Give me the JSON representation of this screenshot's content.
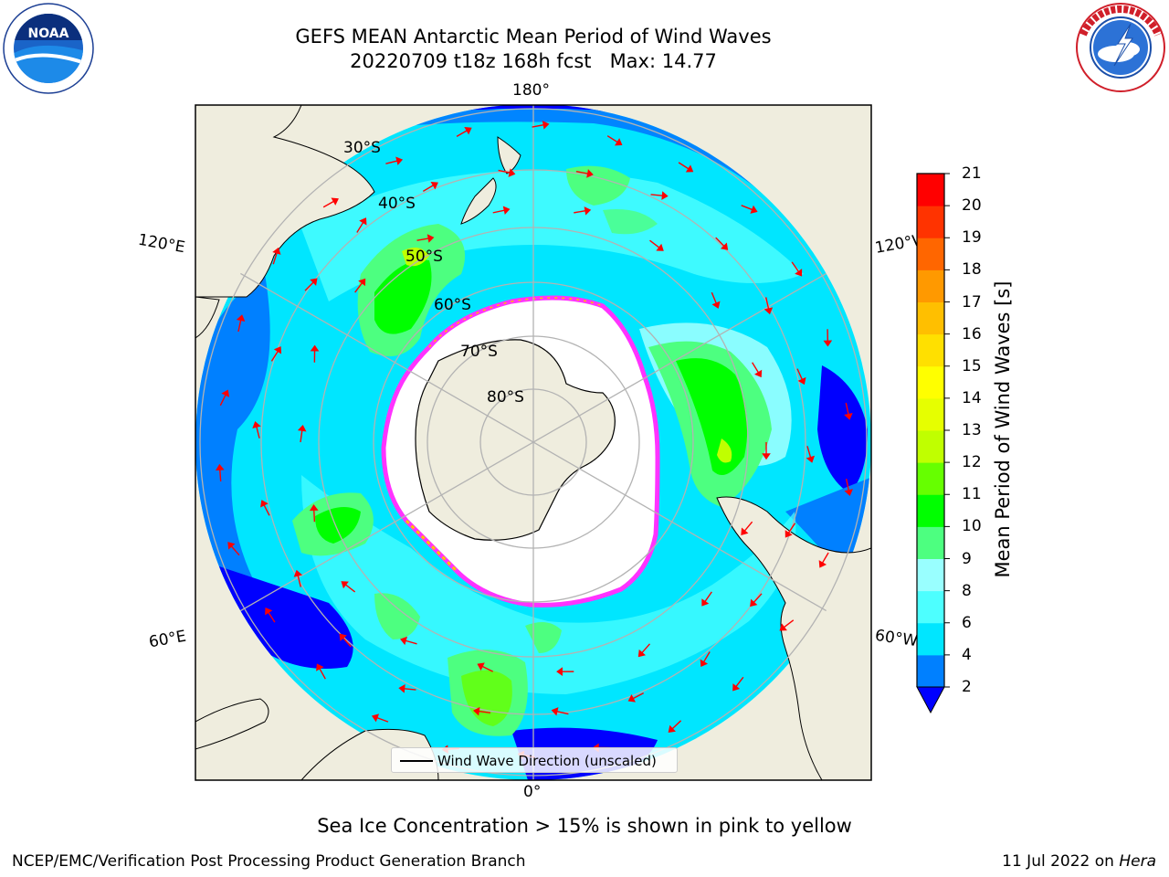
{
  "title": {
    "line1": "GEFS MEAN Antarctic Mean Period of Wind Waves",
    "line2": "20220709 t18z 168h fcst   Max: 14.77"
  },
  "logos": {
    "noaa": {
      "icon": "noaa-logo",
      "text": "NOAA"
    },
    "nws": {
      "icon": "nws-logo"
    }
  },
  "map": {
    "longitude_labels": {
      "top": "180°",
      "bottom": "0°",
      "left_upper": "120°E",
      "left_lower": "60°E",
      "right_upper": "120°W",
      "right_lower": "60°W"
    },
    "latitude_labels": [
      "30°S",
      "40°S",
      "50°S",
      "60°S",
      "70°S",
      "80°S"
    ],
    "legend": "Wind Wave Direction (unscaled)",
    "colors": {
      "land": "#efedde",
      "ice": "#ffffff",
      "ice_edge": "#ff33ff",
      "arrows": "#ff0000",
      "grid": "#b3b3b3"
    }
  },
  "colorbar": {
    "label": "Mean Period of Wind Waves [s]",
    "ticks": [
      "2",
      "4",
      "6",
      "8",
      "9",
      "10",
      "11",
      "12",
      "13",
      "14",
      "15",
      "16",
      "17",
      "18",
      "19",
      "20",
      "21"
    ],
    "colors": [
      "#0000ff",
      "#0080ff",
      "#00e6ff",
      "#4dffff",
      "#99ffff",
      "#4dff80",
      "#00ff00",
      "#66ff00",
      "#c0ff00",
      "#e6ff00",
      "#ffff00",
      "#ffe000",
      "#ffbf00",
      "#ff9900",
      "#ff6600",
      "#ff3300",
      "#ff0000"
    ]
  },
  "caption": "Sea Ice Concentration > 15% is shown in pink to yellow",
  "footer": {
    "left": "NCEP/EMC/Verification Post Processing Product Generation Branch",
    "right_prefix": "11 Jul 2022 on ",
    "right_italic": "Hera"
  }
}
